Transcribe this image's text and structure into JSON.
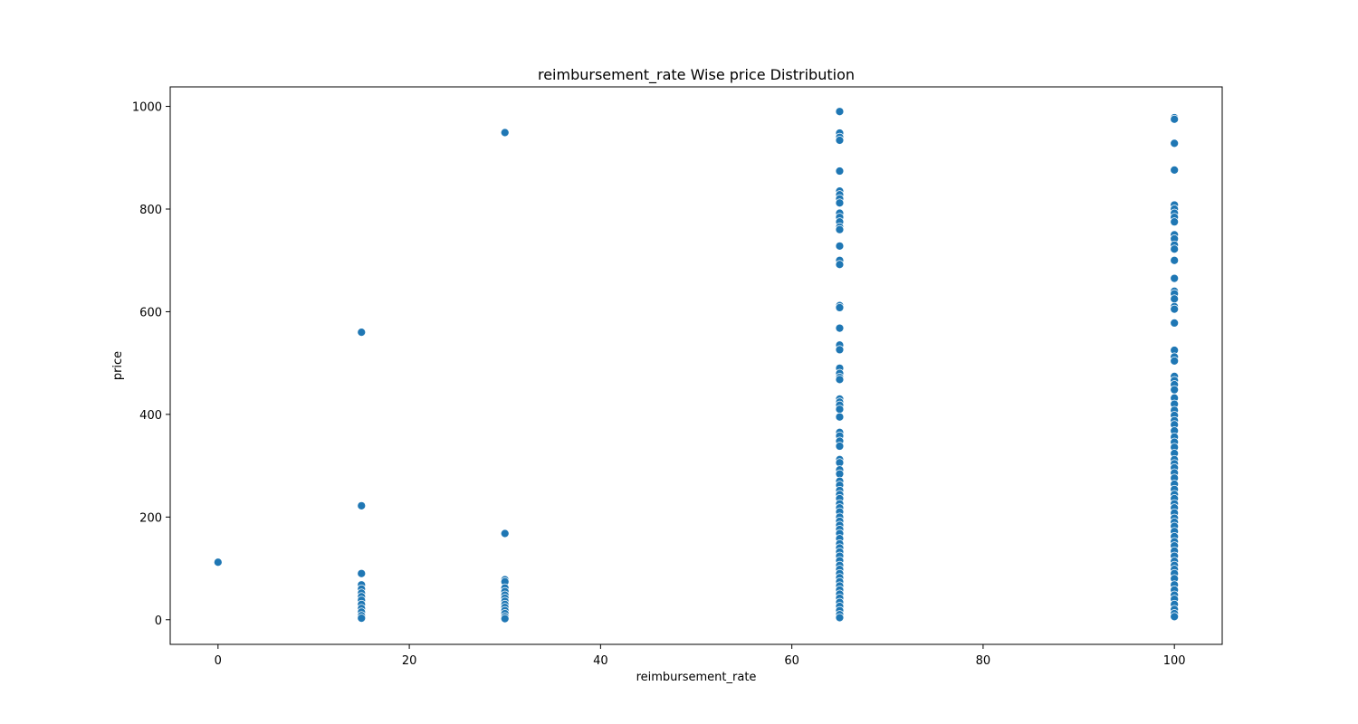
{
  "chart_data": {
    "type": "scatter",
    "title": "reimbursement_rate Wise price Distribution",
    "xlabel": "reimbursement_rate",
    "ylabel": "price",
    "xlim": [
      -5,
      105
    ],
    "ylim": [
      -48,
      1038
    ],
    "xticks": [
      0,
      20,
      40,
      60,
      80,
      100
    ],
    "yticks": [
      0,
      200,
      400,
      600,
      800,
      1000
    ],
    "grid": false,
    "legend": "none",
    "marker_color": "#1f77b4",
    "marker_edge_color": "#ffffff",
    "points": [
      {
        "x": 0,
        "y": 112
      },
      {
        "x": 15,
        "y": 560
      },
      {
        "x": 15,
        "y": 222
      },
      {
        "x": 15,
        "y": 90
      },
      {
        "x": 15,
        "y": 68
      },
      {
        "x": 15,
        "y": 60
      },
      {
        "x": 15,
        "y": 52
      },
      {
        "x": 15,
        "y": 45
      },
      {
        "x": 15,
        "y": 38
      },
      {
        "x": 15,
        "y": 30
      },
      {
        "x": 15,
        "y": 22
      },
      {
        "x": 15,
        "y": 15
      },
      {
        "x": 15,
        "y": 8
      },
      {
        "x": 15,
        "y": 3
      },
      {
        "x": 30,
        "y": 949
      },
      {
        "x": 30,
        "y": 168
      },
      {
        "x": 30,
        "y": 78
      },
      {
        "x": 30,
        "y": 74
      },
      {
        "x": 30,
        "y": 62
      },
      {
        "x": 30,
        "y": 55
      },
      {
        "x": 30,
        "y": 48
      },
      {
        "x": 30,
        "y": 42
      },
      {
        "x": 30,
        "y": 36
      },
      {
        "x": 30,
        "y": 30
      },
      {
        "x": 30,
        "y": 24
      },
      {
        "x": 30,
        "y": 18
      },
      {
        "x": 30,
        "y": 12
      },
      {
        "x": 30,
        "y": 6
      },
      {
        "x": 30,
        "y": 2
      },
      {
        "x": 65,
        "y": 990
      },
      {
        "x": 65,
        "y": 948
      },
      {
        "x": 65,
        "y": 940
      },
      {
        "x": 65,
        "y": 934
      },
      {
        "x": 65,
        "y": 874
      },
      {
        "x": 65,
        "y": 835
      },
      {
        "x": 65,
        "y": 828
      },
      {
        "x": 65,
        "y": 820
      },
      {
        "x": 65,
        "y": 812
      },
      {
        "x": 65,
        "y": 792
      },
      {
        "x": 65,
        "y": 784
      },
      {
        "x": 65,
        "y": 775
      },
      {
        "x": 65,
        "y": 765
      },
      {
        "x": 65,
        "y": 760
      },
      {
        "x": 65,
        "y": 728
      },
      {
        "x": 65,
        "y": 700
      },
      {
        "x": 65,
        "y": 692
      },
      {
        "x": 65,
        "y": 612
      },
      {
        "x": 65,
        "y": 608
      },
      {
        "x": 65,
        "y": 568
      },
      {
        "x": 65,
        "y": 535
      },
      {
        "x": 65,
        "y": 526
      },
      {
        "x": 65,
        "y": 490
      },
      {
        "x": 65,
        "y": 480
      },
      {
        "x": 65,
        "y": 472
      },
      {
        "x": 65,
        "y": 468
      },
      {
        "x": 65,
        "y": 430
      },
      {
        "x": 65,
        "y": 424
      },
      {
        "x": 65,
        "y": 418
      },
      {
        "x": 65,
        "y": 410
      },
      {
        "x": 65,
        "y": 395
      },
      {
        "x": 65,
        "y": 365
      },
      {
        "x": 65,
        "y": 358
      },
      {
        "x": 65,
        "y": 348
      },
      {
        "x": 65,
        "y": 338
      },
      {
        "x": 65,
        "y": 312
      },
      {
        "x": 65,
        "y": 306
      },
      {
        "x": 65,
        "y": 292
      },
      {
        "x": 65,
        "y": 284
      },
      {
        "x": 65,
        "y": 270
      },
      {
        "x": 65,
        "y": 262
      },
      {
        "x": 65,
        "y": 252
      },
      {
        "x": 65,
        "y": 244
      },
      {
        "x": 65,
        "y": 236
      },
      {
        "x": 65,
        "y": 226
      },
      {
        "x": 65,
        "y": 218
      },
      {
        "x": 65,
        "y": 210
      },
      {
        "x": 65,
        "y": 200
      },
      {
        "x": 65,
        "y": 192
      },
      {
        "x": 65,
        "y": 184
      },
      {
        "x": 65,
        "y": 176
      },
      {
        "x": 65,
        "y": 168
      },
      {
        "x": 65,
        "y": 158
      },
      {
        "x": 65,
        "y": 148
      },
      {
        "x": 65,
        "y": 140
      },
      {
        "x": 65,
        "y": 132
      },
      {
        "x": 65,
        "y": 124
      },
      {
        "x": 65,
        "y": 115
      },
      {
        "x": 65,
        "y": 106
      },
      {
        "x": 65,
        "y": 98
      },
      {
        "x": 65,
        "y": 90
      },
      {
        "x": 65,
        "y": 82
      },
      {
        "x": 65,
        "y": 74
      },
      {
        "x": 65,
        "y": 66
      },
      {
        "x": 65,
        "y": 58
      },
      {
        "x": 65,
        "y": 50
      },
      {
        "x": 65,
        "y": 42
      },
      {
        "x": 65,
        "y": 34
      },
      {
        "x": 65,
        "y": 26
      },
      {
        "x": 65,
        "y": 18
      },
      {
        "x": 65,
        "y": 10
      },
      {
        "x": 65,
        "y": 4
      },
      {
        "x": 100,
        "y": 978
      },
      {
        "x": 100,
        "y": 975
      },
      {
        "x": 100,
        "y": 928
      },
      {
        "x": 100,
        "y": 876
      },
      {
        "x": 100,
        "y": 808
      },
      {
        "x": 100,
        "y": 800
      },
      {
        "x": 100,
        "y": 792
      },
      {
        "x": 100,
        "y": 784
      },
      {
        "x": 100,
        "y": 775
      },
      {
        "x": 100,
        "y": 750
      },
      {
        "x": 100,
        "y": 742
      },
      {
        "x": 100,
        "y": 730
      },
      {
        "x": 100,
        "y": 722
      },
      {
        "x": 100,
        "y": 700
      },
      {
        "x": 100,
        "y": 665
      },
      {
        "x": 100,
        "y": 640
      },
      {
        "x": 100,
        "y": 635
      },
      {
        "x": 100,
        "y": 625
      },
      {
        "x": 100,
        "y": 610
      },
      {
        "x": 100,
        "y": 605
      },
      {
        "x": 100,
        "y": 578
      },
      {
        "x": 100,
        "y": 525
      },
      {
        "x": 100,
        "y": 512
      },
      {
        "x": 100,
        "y": 504
      },
      {
        "x": 100,
        "y": 474
      },
      {
        "x": 100,
        "y": 466
      },
      {
        "x": 100,
        "y": 458
      },
      {
        "x": 100,
        "y": 448
      },
      {
        "x": 100,
        "y": 432
      },
      {
        "x": 100,
        "y": 420
      },
      {
        "x": 100,
        "y": 408
      },
      {
        "x": 100,
        "y": 398
      },
      {
        "x": 100,
        "y": 388
      },
      {
        "x": 100,
        "y": 380
      },
      {
        "x": 100,
        "y": 368
      },
      {
        "x": 100,
        "y": 356
      },
      {
        "x": 100,
        "y": 346
      },
      {
        "x": 100,
        "y": 336
      },
      {
        "x": 100,
        "y": 324
      },
      {
        "x": 100,
        "y": 312
      },
      {
        "x": 100,
        "y": 304
      },
      {
        "x": 100,
        "y": 296
      },
      {
        "x": 100,
        "y": 286
      },
      {
        "x": 100,
        "y": 276
      },
      {
        "x": 100,
        "y": 264
      },
      {
        "x": 100,
        "y": 254
      },
      {
        "x": 100,
        "y": 244
      },
      {
        "x": 100,
        "y": 236
      },
      {
        "x": 100,
        "y": 226
      },
      {
        "x": 100,
        "y": 218
      },
      {
        "x": 100,
        "y": 208
      },
      {
        "x": 100,
        "y": 198
      },
      {
        "x": 100,
        "y": 190
      },
      {
        "x": 100,
        "y": 182
      },
      {
        "x": 100,
        "y": 172
      },
      {
        "x": 100,
        "y": 162
      },
      {
        "x": 100,
        "y": 152
      },
      {
        "x": 100,
        "y": 144
      },
      {
        "x": 100,
        "y": 134
      },
      {
        "x": 100,
        "y": 124
      },
      {
        "x": 100,
        "y": 114
      },
      {
        "x": 100,
        "y": 106
      },
      {
        "x": 100,
        "y": 98
      },
      {
        "x": 100,
        "y": 90
      },
      {
        "x": 100,
        "y": 80
      },
      {
        "x": 100,
        "y": 68
      },
      {
        "x": 100,
        "y": 58
      },
      {
        "x": 100,
        "y": 48
      },
      {
        "x": 100,
        "y": 40
      },
      {
        "x": 100,
        "y": 30
      },
      {
        "x": 100,
        "y": 20
      },
      {
        "x": 100,
        "y": 12
      },
      {
        "x": 100,
        "y": 6
      }
    ]
  }
}
